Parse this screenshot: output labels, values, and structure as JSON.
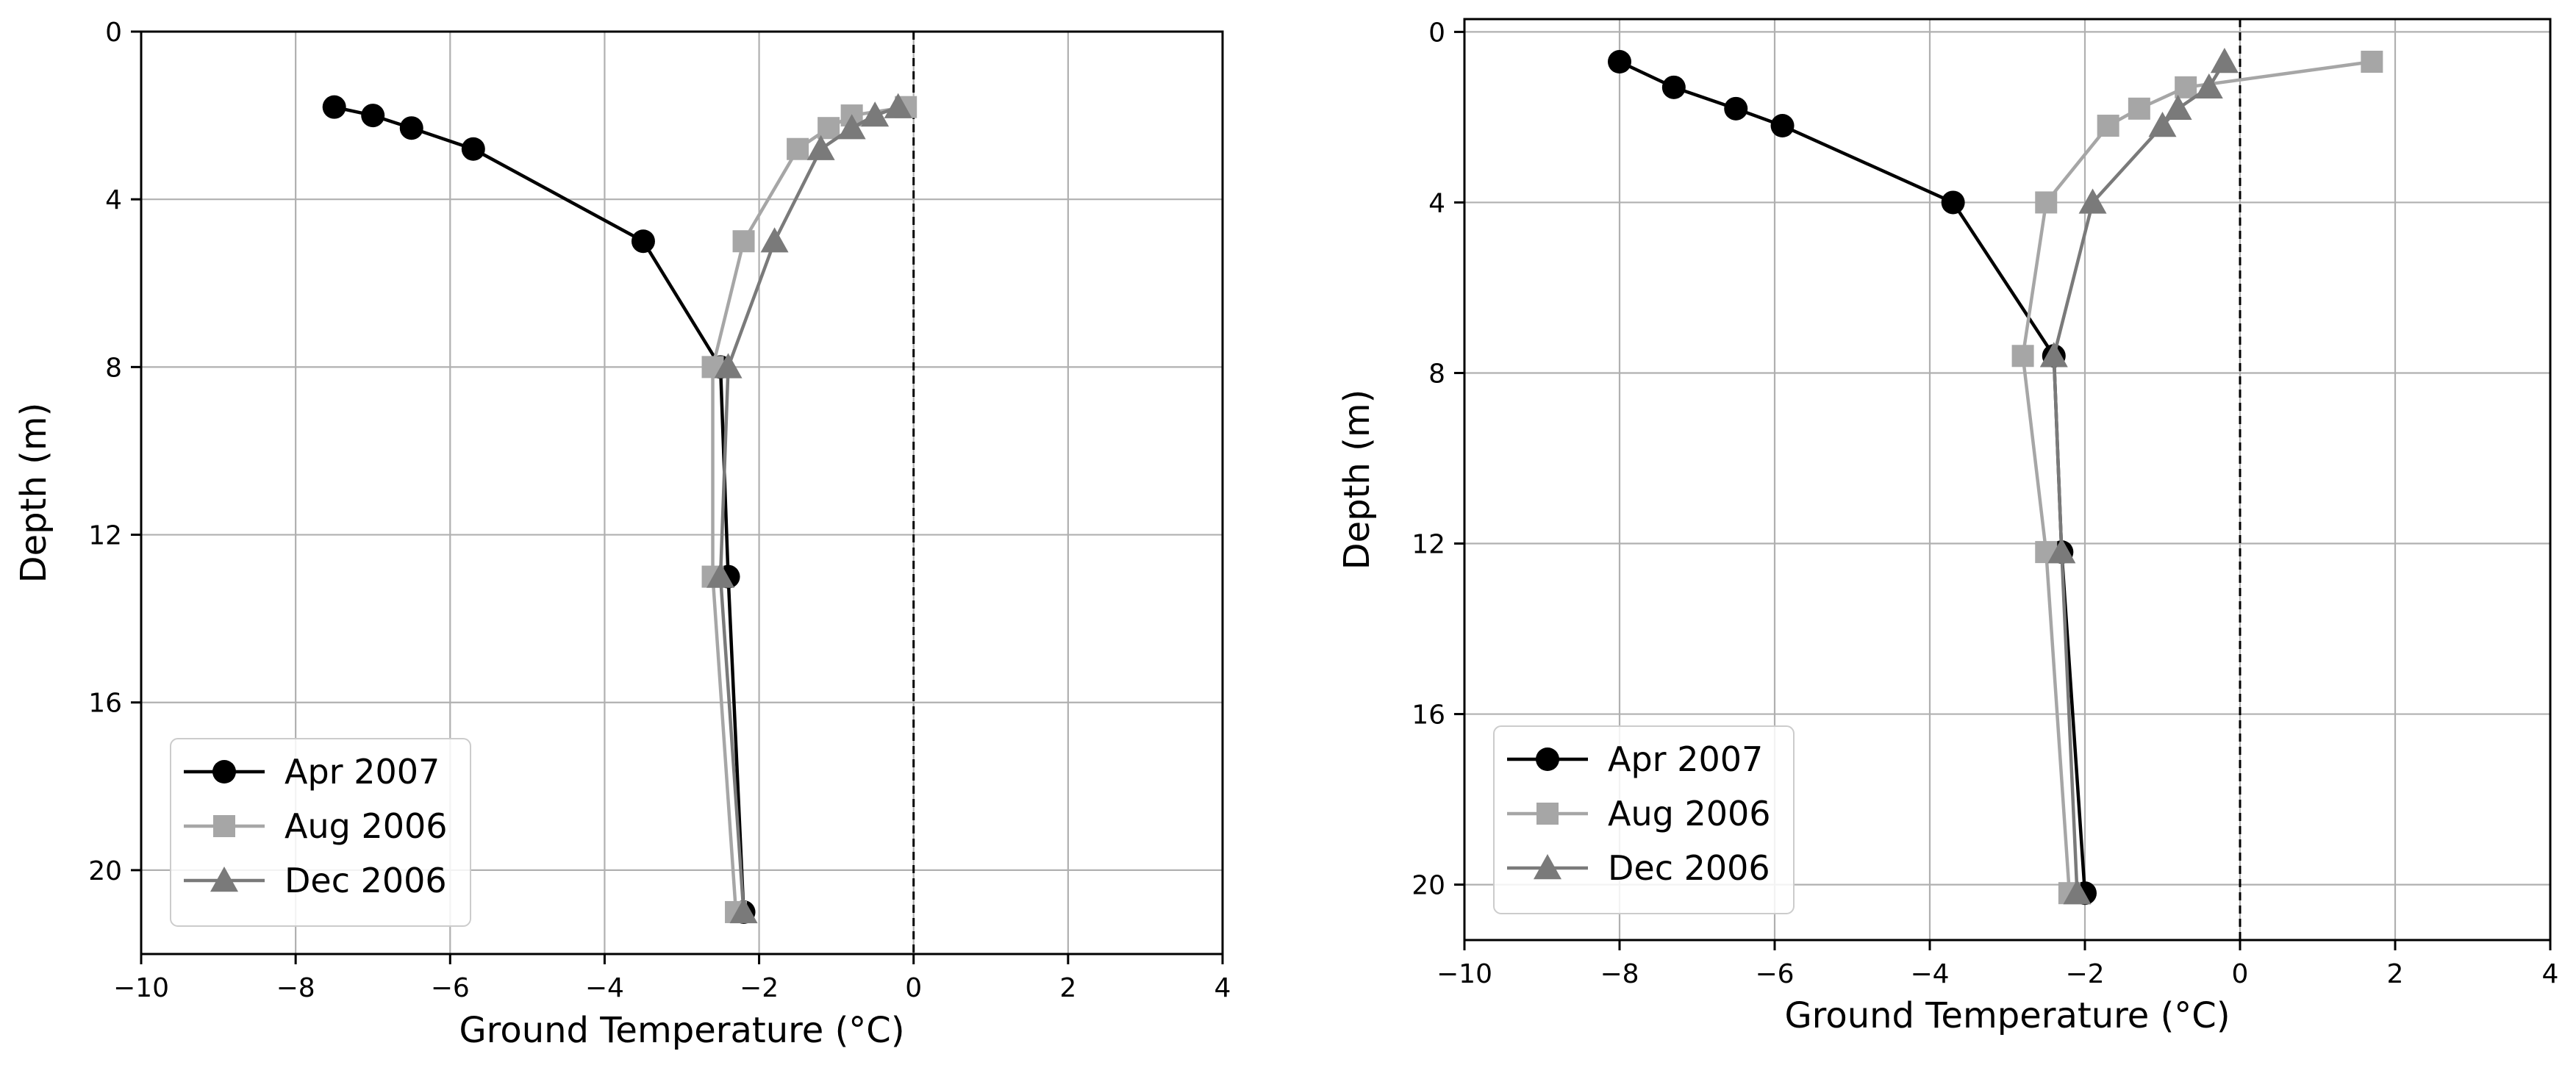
{
  "chart_data": [
    {
      "type": "line",
      "xlabel": "Ground Temperature (°C)",
      "ylabel": "Depth (m)",
      "xlim": [
        -10,
        4
      ],
      "ylim": [
        22,
        0
      ],
      "y_inverted": true,
      "xticks": [
        -10,
        -8,
        -6,
        -4,
        -2,
        0,
        2,
        4
      ],
      "yticks": [
        0,
        4,
        8,
        12,
        16,
        20
      ],
      "xtick_labels": [
        "−10",
        "−8",
        "−6",
        "−4",
        "−2",
        "0",
        "2",
        "4"
      ],
      "ytick_labels": [
        "0",
        "4",
        "8",
        "12",
        "16",
        "20"
      ],
      "grid": true,
      "reference_line": {
        "x": 0,
        "style": "dashed",
        "color": "#000000"
      },
      "legend_position": "lower-left",
      "series": [
        {
          "name": "Apr 2007",
          "marker": "circle",
          "color": "#000000",
          "x": [
            -7.5,
            -7.0,
            -6.5,
            -5.7,
            -3.5,
            -2.5,
            -2.4,
            -2.2
          ],
          "y": [
            1.8,
            2.0,
            2.3,
            2.8,
            5.0,
            8.0,
            13.0,
            21.0
          ]
        },
        {
          "name": "Aug 2006",
          "marker": "square",
          "color": "#a6a6a6",
          "x": [
            -0.1,
            -0.8,
            -1.1,
            -1.5,
            -2.2,
            -2.6,
            -2.6,
            -2.3
          ],
          "y": [
            1.8,
            2.0,
            2.3,
            2.8,
            5.0,
            8.0,
            13.0,
            21.0
          ]
        },
        {
          "name": "Dec 2006",
          "marker": "triangle",
          "color": "#7a7a7a",
          "x": [
            -0.2,
            -0.5,
            -0.8,
            -1.2,
            -1.8,
            -2.4,
            -2.5,
            -2.2
          ],
          "y": [
            1.8,
            2.0,
            2.3,
            2.8,
            5.0,
            8.0,
            13.0,
            21.0
          ]
        }
      ]
    },
    {
      "type": "line",
      "xlabel": "Ground Temperature (°C)",
      "ylabel": "Depth (m)",
      "xlim": [
        -10,
        4
      ],
      "ylim": [
        21.3,
        -0.3
      ],
      "y_inverted": true,
      "xticks": [
        -10,
        -8,
        -6,
        -4,
        -2,
        0,
        2,
        4
      ],
      "yticks": [
        0,
        4,
        8,
        12,
        16,
        20
      ],
      "xtick_labels": [
        "−10",
        "−8",
        "−6",
        "−4",
        "−2",
        "0",
        "2",
        "4"
      ],
      "ytick_labels": [
        "0",
        "4",
        "8",
        "12",
        "16",
        "20"
      ],
      "grid": true,
      "reference_line": {
        "x": 0,
        "style": "dashed",
        "color": "#000000"
      },
      "legend_position": "lower-left",
      "series": [
        {
          "name": "Apr 2007",
          "marker": "circle",
          "color": "#000000",
          "x": [
            -8.0,
            -7.3,
            -6.5,
            -5.9,
            -3.7,
            -2.4,
            -2.3,
            -2.0
          ],
          "y": [
            0.7,
            1.3,
            1.8,
            2.2,
            4.0,
            7.6,
            12.2,
            20.2
          ]
        },
        {
          "name": "Aug 2006",
          "marker": "square",
          "color": "#a6a6a6",
          "x": [
            1.7,
            -0.7,
            -1.3,
            -1.7,
            -2.5,
            -2.8,
            -2.5,
            -2.2
          ],
          "y": [
            0.7,
            1.3,
            1.8,
            2.2,
            4.0,
            7.6,
            12.2,
            20.2
          ]
        },
        {
          "name": "Dec 2006",
          "marker": "triangle",
          "color": "#7a7a7a",
          "x": [
            -0.2,
            -0.4,
            -0.8,
            -1.0,
            -1.9,
            -2.4,
            -2.3,
            -2.1
          ],
          "y": [
            0.7,
            1.3,
            1.8,
            2.2,
            4.0,
            7.6,
            12.2,
            20.2
          ]
        }
      ]
    }
  ]
}
